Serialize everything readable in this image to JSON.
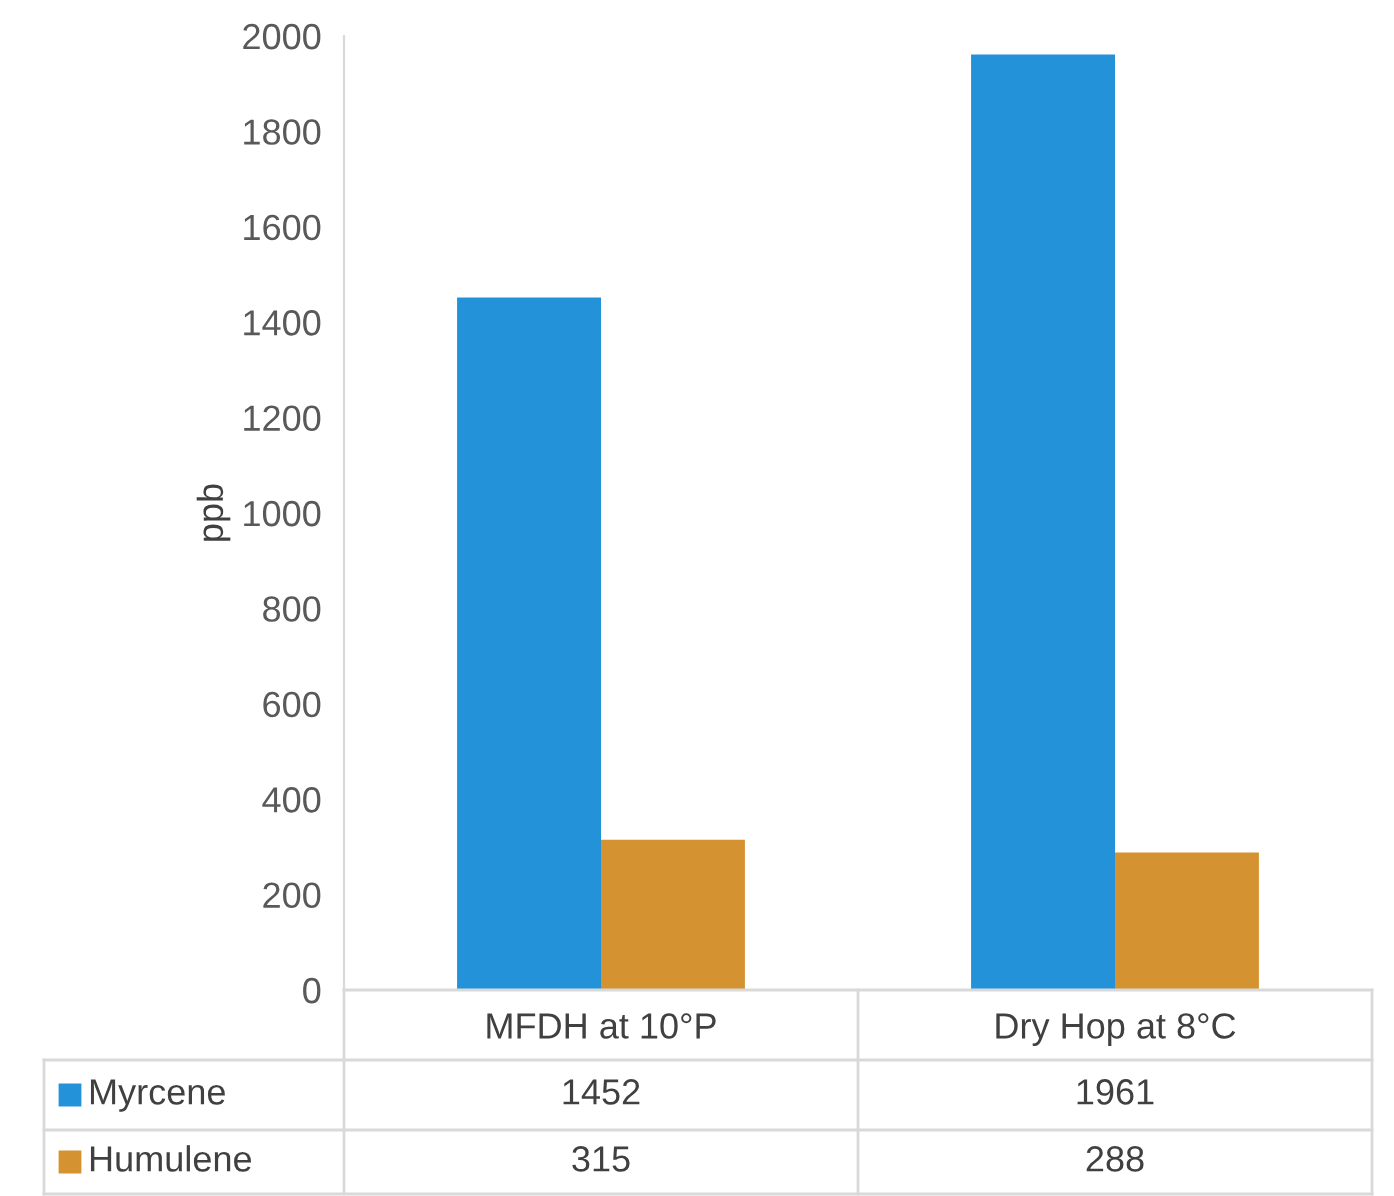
{
  "chart_data": {
    "type": "bar",
    "ylabel": "ppb",
    "categories": [
      "MFDH at 10°P",
      "Dry Hop at 8°C"
    ],
    "series": [
      {
        "name": "Myrcene",
        "color": "#2492d8",
        "values": [
          1452,
          1961
        ]
      },
      {
        "name": "Humulene",
        "color": "#d59230",
        "values": [
          315,
          288
        ]
      }
    ],
    "ylim": [
      0,
      2000
    ],
    "yticks": [
      0,
      200,
      400,
      600,
      800,
      1000,
      1200,
      1400,
      1600,
      1800,
      2000
    ],
    "grid": false,
    "data_labels": true,
    "legend": "bottom"
  }
}
